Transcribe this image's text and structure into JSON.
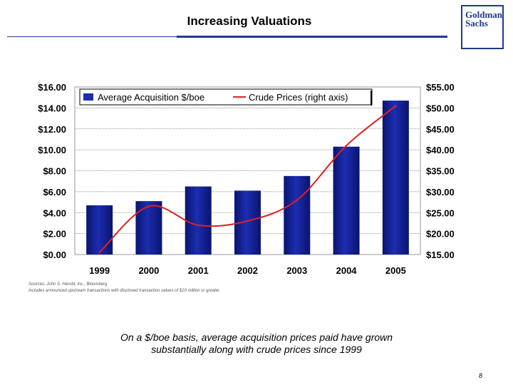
{
  "header": {
    "title": "Increasing Valuations",
    "logo_line1": "Goldman",
    "logo_line2": "Sachs"
  },
  "chart_data": {
    "type": "bar",
    "categories": [
      "1999",
      "2000",
      "2001",
      "2002",
      "2003",
      "2004",
      "2005"
    ],
    "series": [
      {
        "name": "Average Acquisition $/boe",
        "type": "bar",
        "axis": "left",
        "values": [
          4.7,
          5.1,
          6.5,
          6.1,
          7.5,
          10.3,
          14.7
        ],
        "color": "#1c2db0"
      },
      {
        "name": "Crude Prices (right axis)",
        "type": "line",
        "axis": "right",
        "values": [
          15.5,
          26.5,
          22.0,
          23.0,
          28.0,
          41.0,
          50.5
        ],
        "color": "#e02020"
      }
    ],
    "left_axis": {
      "ylim": [
        0,
        16
      ],
      "ticks": [
        "$0.00",
        "$2.00",
        "$4.00",
        "$6.00",
        "$8.00",
        "$10.00",
        "$12.00",
        "$14.00",
        "$16.00"
      ]
    },
    "right_axis": {
      "ylim": [
        15,
        55
      ],
      "ticks": [
        "$15.00",
        "$20.00",
        "$25.00",
        "$30.00",
        "$35.00",
        "$40.00",
        "$45.00",
        "$50.00",
        "$55.00"
      ]
    },
    "legend": "top-left",
    "grid": true
  },
  "footer": {
    "source_line1": "Sources: John S. Herold, Inc., Bloomberg",
    "source_line2": "Includes announced upstream transactions with disclosed transaction values of $10 million or greater",
    "note_line1": "On a $/boe basis, average acquisition prices paid have grown",
    "note_line2": "substantially along with crude prices since 1999",
    "page_number": "8"
  },
  "colors": {
    "accent": "#1f3a8a",
    "bar": "#1c2db0",
    "line": "#e02020"
  }
}
